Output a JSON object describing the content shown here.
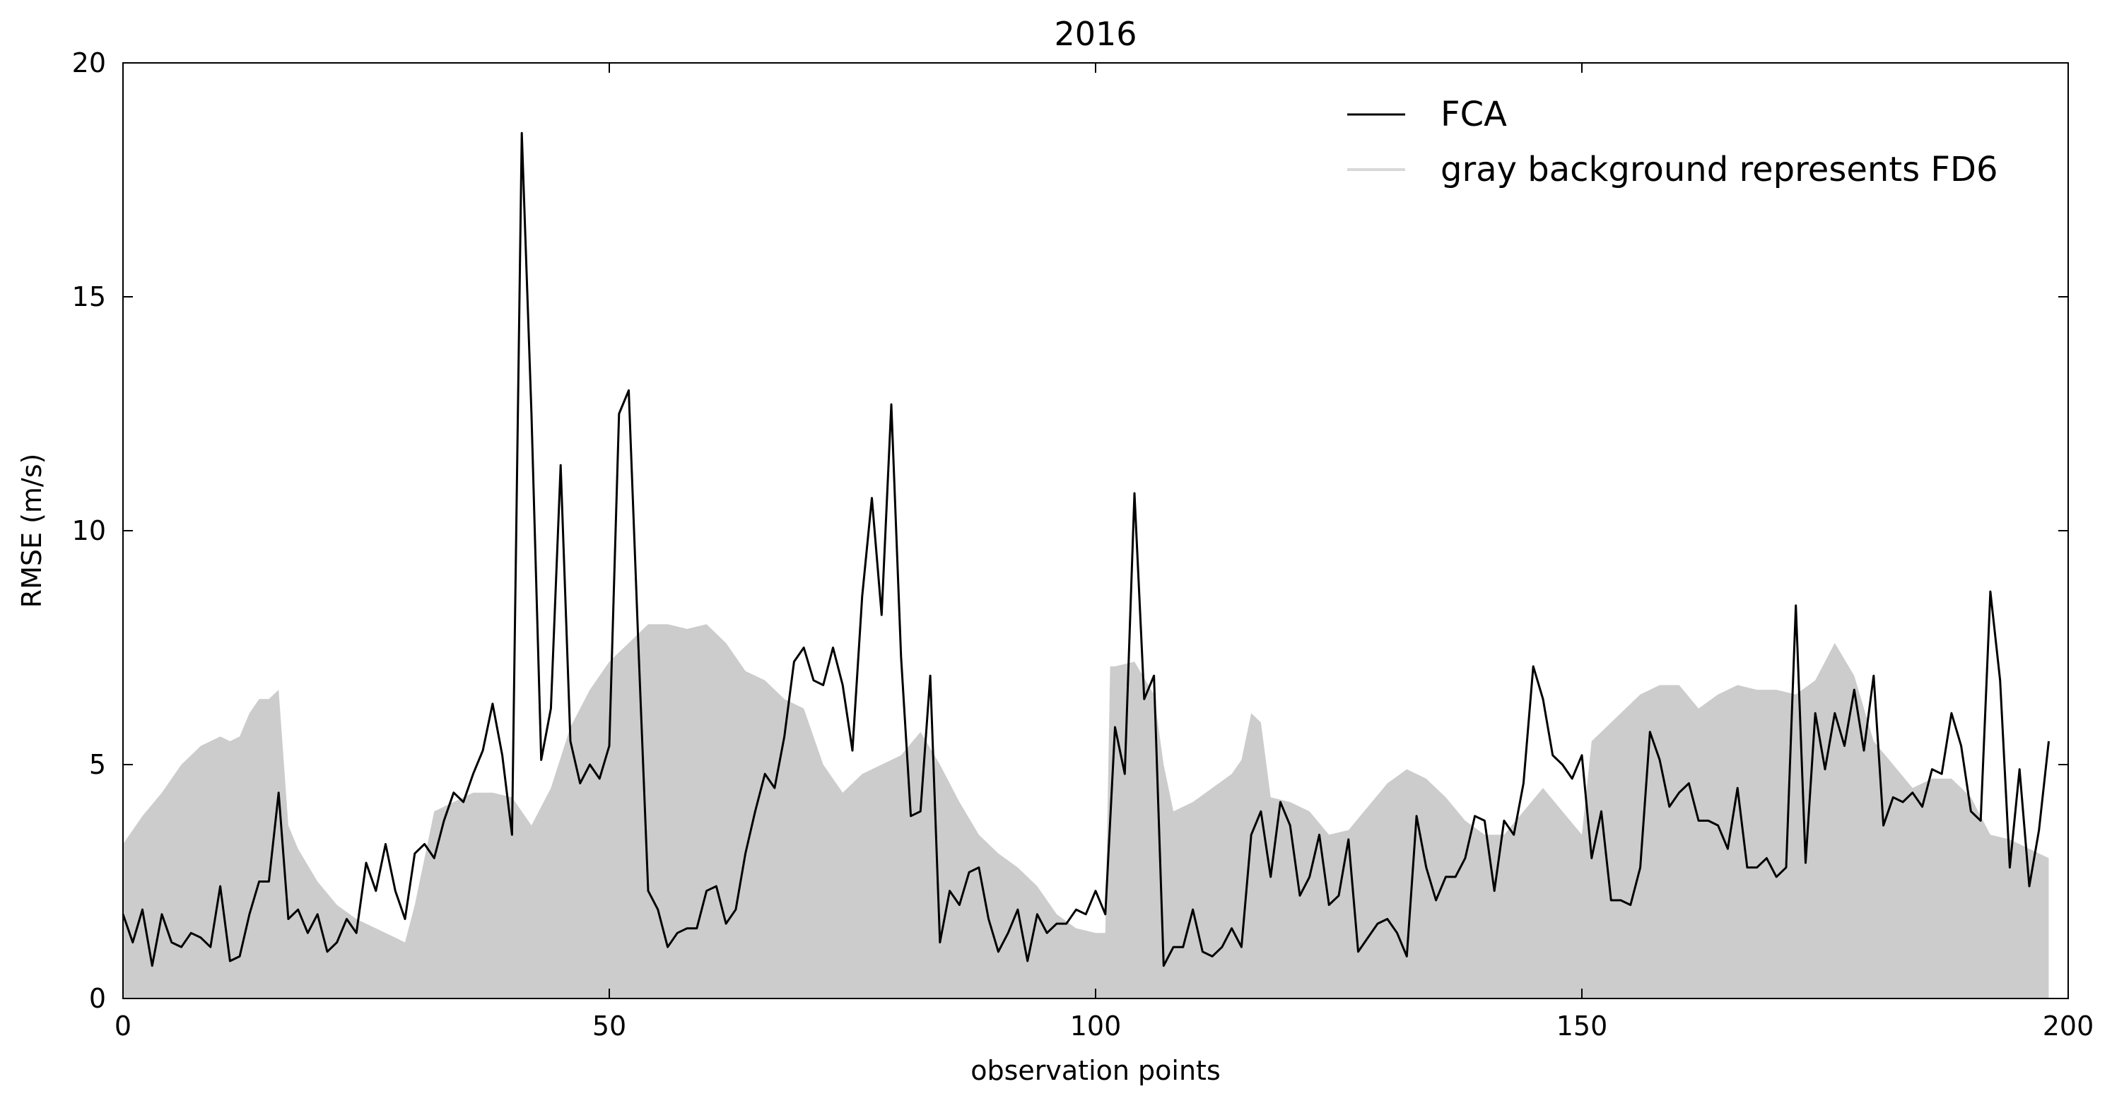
{
  "chart_data": {
    "type": "line",
    "title": "2016",
    "xlabel": "observation points",
    "ylabel": "RMSE (m/s)",
    "xlim": [
      0,
      200
    ],
    "ylim": [
      0,
      20
    ],
    "xticks": [
      0,
      50,
      100,
      150,
      200
    ],
    "yticks": [
      0,
      5,
      10,
      15,
      20
    ],
    "grid": false,
    "legend_position": "top-right",
    "legend_line_label": "FCA",
    "legend_area_label": "gray background represents FD6",
    "colors": {
      "line": "#000000",
      "area": "#cccccc",
      "legend_area": "#d9d9d9",
      "axes": "#000000"
    },
    "area_series": {
      "x": [
        0,
        2,
        4,
        6,
        8,
        10,
        11,
        12,
        13,
        14,
        15,
        16,
        17,
        18,
        20,
        22,
        24,
        26,
        28,
        29,
        30,
        31,
        32,
        34,
        36,
        38,
        40,
        42,
        44,
        46,
        48,
        50,
        52,
        54,
        56,
        58,
        60,
        62,
        64,
        66,
        68,
        70,
        72,
        74,
        76,
        78,
        80,
        82,
        84,
        86,
        88,
        90,
        92,
        94,
        96,
        98,
        100,
        101,
        101.5,
        102,
        104,
        106,
        107,
        108,
        110,
        112,
        114,
        115,
        116,
        117,
        118,
        120,
        122,
        124,
        126,
        128,
        130,
        132,
        134,
        136,
        138,
        140,
        142,
        144,
        146,
        148,
        150,
        151,
        152,
        154,
        156,
        158,
        160,
        162,
        164,
        166,
        168,
        170,
        172,
        174,
        176,
        178,
        180,
        182,
        184,
        186,
        188,
        190,
        192,
        194,
        196,
        198
      ],
      "values": [
        3.3,
        3.9,
        4.4,
        5.0,
        5.4,
        5.6,
        5.5,
        5.6,
        6.1,
        6.4,
        6.4,
        6.6,
        3.7,
        3.2,
        2.5,
        2.0,
        1.7,
        1.5,
        1.3,
        1.2,
        2.0,
        3.0,
        4.0,
        4.2,
        4.4,
        4.4,
        4.3,
        3.7,
        4.5,
        5.8,
        6.6,
        7.2,
        7.6,
        8.0,
        8.0,
        7.9,
        8.0,
        7.6,
        7.0,
        6.8,
        6.4,
        6.2,
        5.0,
        4.4,
        4.8,
        5.0,
        5.2,
        5.7,
        5.0,
        4.2,
        3.5,
        3.1,
        2.8,
        2.4,
        1.8,
        1.5,
        1.4,
        1.4,
        7.1,
        7.1,
        7.2,
        6.5,
        5.0,
        4.0,
        4.2,
        4.5,
        4.8,
        5.1,
        6.1,
        5.9,
        4.3,
        4.2,
        4.0,
        3.5,
        3.6,
        4.1,
        4.6,
        4.9,
        4.7,
        4.3,
        3.8,
        3.5,
        3.5,
        4.0,
        4.5,
        4.0,
        3.5,
        5.5,
        5.7,
        6.1,
        6.5,
        6.7,
        6.7,
        6.2,
        6.5,
        6.7,
        6.6,
        6.6,
        6.5,
        6.8,
        7.6,
        6.9,
        5.5,
        5.0,
        4.5,
        4.7,
        4.7,
        4.3,
        3.5,
        3.4,
        3.2,
        3.0
      ]
    },
    "line_series": {
      "name": "FCA",
      "x": [
        0,
        1,
        2,
        3,
        4,
        5,
        6,
        7,
        8,
        9,
        10,
        11,
        12,
        13,
        14,
        15,
        16,
        17,
        18,
        19,
        20,
        21,
        22,
        23,
        24,
        25,
        26,
        27,
        28,
        29,
        30,
        31,
        32,
        33,
        34,
        35,
        36,
        37,
        38,
        39,
        40,
        41,
        42,
        43,
        44,
        45,
        46,
        47,
        48,
        49,
        50,
        51,
        52,
        53,
        54,
        55,
        56,
        57,
        58,
        59,
        60,
        61,
        62,
        63,
        64,
        65,
        66,
        67,
        68,
        69,
        70,
        71,
        72,
        73,
        74,
        75,
        76,
        77,
        78,
        79,
        80,
        81,
        82,
        83,
        84,
        85,
        86,
        87,
        88,
        89,
        90,
        91,
        92,
        93,
        94,
        95,
        96,
        97,
        98,
        99,
        100,
        101,
        102,
        103,
        104,
        105,
        106,
        107,
        108,
        109,
        110,
        111,
        112,
        113,
        114,
        115,
        116,
        117,
        118,
        119,
        120,
        121,
        122,
        123,
        124,
        125,
        126,
        127,
        128,
        129,
        130,
        131,
        132,
        133,
        134,
        135,
        136,
        137,
        138,
        139,
        140,
        141,
        142,
        143,
        144,
        145,
        146,
        147,
        148,
        149,
        150,
        151,
        152,
        153,
        154,
        155,
        156,
        157,
        158,
        159,
        160,
        161,
        162,
        163,
        164,
        165,
        166,
        167,
        168,
        169,
        170,
        171,
        172,
        173,
        174,
        175,
        176,
        177,
        178,
        179,
        180,
        181,
        182,
        183,
        184,
        185,
        186,
        187,
        188,
        189,
        190,
        191,
        192,
        193,
        194,
        195,
        196,
        197,
        198
      ],
      "values": [
        1.8,
        1.2,
        1.9,
        0.7,
        1.8,
        1.2,
        1.1,
        1.4,
        1.3,
        1.1,
        2.4,
        0.8,
        0.9,
        1.8,
        2.5,
        2.5,
        4.4,
        1.7,
        1.9,
        1.4,
        1.8,
        1.0,
        1.2,
        1.7,
        1.4,
        2.9,
        2.3,
        3.3,
        2.3,
        1.7,
        3.1,
        3.3,
        3.0,
        3.8,
        4.4,
        4.2,
        4.8,
        5.3,
        6.3,
        5.2,
        3.5,
        18.5,
        12.5,
        5.1,
        6.2,
        11.4,
        5.5,
        4.6,
        5.0,
        4.7,
        5.4,
        12.5,
        13.0,
        7.5,
        2.3,
        1.9,
        1.1,
        1.4,
        1.5,
        1.5,
        2.3,
        2.4,
        1.6,
        1.9,
        3.1,
        4.0,
        4.8,
        4.5,
        5.6,
        7.2,
        7.5,
        6.8,
        6.7,
        7.5,
        6.7,
        5.3,
        8.6,
        10.7,
        8.2,
        12.7,
        7.3,
        3.9,
        4.0,
        6.9,
        1.2,
        2.3,
        2.0,
        2.7,
        2.8,
        1.7,
        1.0,
        1.4,
        1.9,
        0.8,
        1.8,
        1.4,
        1.6,
        1.6,
        1.9,
        1.8,
        2.3,
        1.8,
        5.8,
        4.8,
        10.8,
        6.4,
        6.9,
        0.7,
        1.1,
        1.1,
        1.9,
        1.0,
        0.9,
        1.1,
        1.5,
        1.1,
        3.5,
        4.0,
        2.6,
        4.2,
        3.7,
        2.2,
        2.6,
        3.5,
        2.0,
        2.2,
        3.4,
        1.0,
        1.3,
        1.6,
        1.7,
        1.4,
        0.9,
        3.9,
        2.8,
        2.1,
        2.6,
        2.6,
        3.0,
        3.9,
        3.8,
        2.3,
        3.8,
        3.5,
        4.6,
        7.1,
        6.4,
        5.2,
        5.0,
        4.7,
        5.2,
        3.0,
        4.0,
        2.1,
        2.1,
        2.0,
        2.8,
        5.7,
        5.1,
        4.1,
        4.4,
        4.6,
        3.8,
        3.8,
        3.7,
        3.2,
        4.5,
        2.8,
        2.8,
        3.0,
        2.6,
        2.8,
        8.4,
        2.9,
        6.1,
        4.9,
        6.1,
        5.4,
        6.6,
        5.3,
        6.9,
        3.7,
        4.3,
        4.2,
        4.4,
        4.1,
        4.9,
        4.8,
        6.1,
        5.4,
        4.0,
        3.8,
        8.7,
        6.8,
        2.8,
        4.9,
        2.4,
        3.6,
        5.5
      ]
    }
  }
}
